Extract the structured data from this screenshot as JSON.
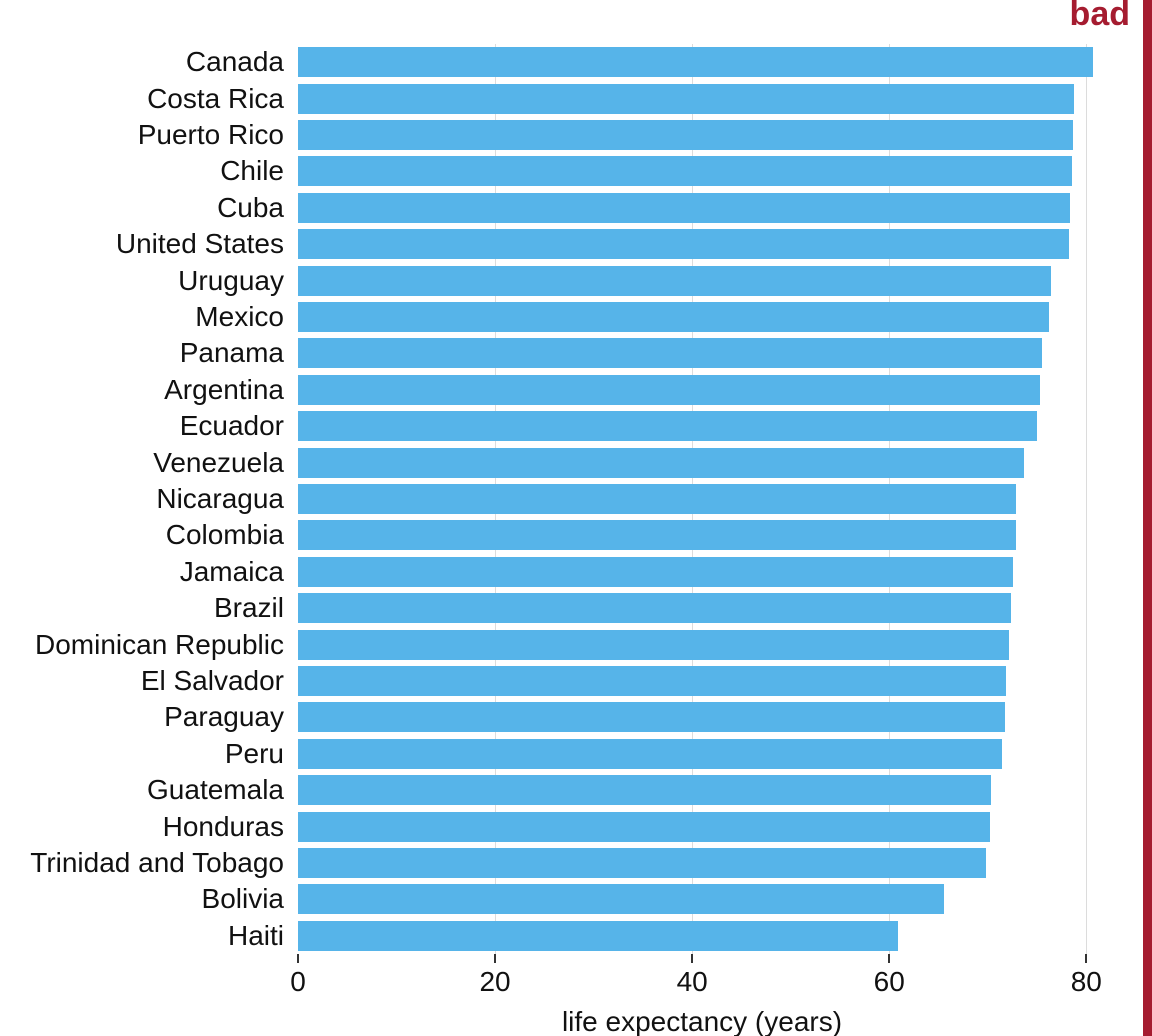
{
  "stamp": {
    "label": "bad",
    "color": "#A51C30"
  },
  "chart_data": {
    "type": "bar",
    "orientation": "horizontal",
    "title": "",
    "xlabel": "life expectancy (years)",
    "ylabel": "",
    "xlim": [
      0,
      82
    ],
    "xticks": [
      0,
      20,
      40,
      60,
      80
    ],
    "grid": "vertical-gridlines-behind-bars",
    "legend": "none",
    "bar_color": "#56B4E9",
    "gridline_color": "#DCDCDC",
    "categories": [
      "Canada",
      "Costa Rica",
      "Puerto Rico",
      "Chile",
      "Cuba",
      "United States",
      "Uruguay",
      "Mexico",
      "Panama",
      "Argentina",
      "Ecuador",
      "Venezuela",
      "Nicaragua",
      "Colombia",
      "Jamaica",
      "Brazil",
      "Dominican Republic",
      "El Salvador",
      "Paraguay",
      "Peru",
      "Guatemala",
      "Honduras",
      "Trinidad and Tobago",
      "Bolivia",
      "Haiti"
    ],
    "values": [
      80.7,
      78.8,
      78.7,
      78.6,
      78.3,
      78.2,
      76.4,
      76.2,
      75.5,
      75.3,
      75.0,
      73.7,
      72.9,
      72.9,
      72.6,
      72.4,
      72.2,
      71.9,
      71.8,
      71.4,
      70.3,
      70.2,
      69.8,
      65.6,
      60.9
    ]
  }
}
